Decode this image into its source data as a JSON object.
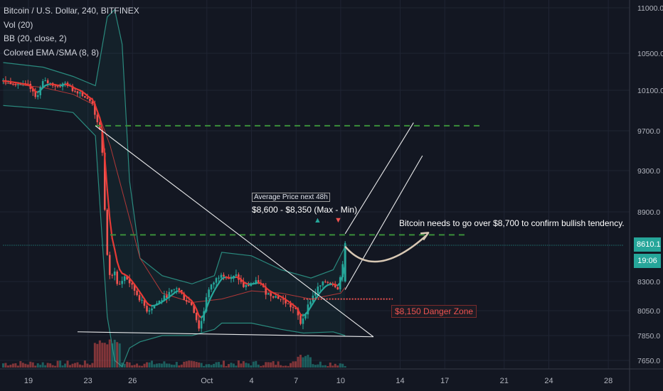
{
  "legend": {
    "symbol": "Bitcoin / U.S. Dollar, 240, BITFINEX",
    "vol": "Vol (20)",
    "bb": "BB (20, close, 2)",
    "ema": "Colored EMA /SMA (8, 8)"
  },
  "colors": {
    "background": "#131722",
    "up": "#26a69a",
    "down": "#ef5350",
    "ema_up": "#26a69a",
    "ema_down": "#e53935",
    "bb_band": "#2a8a7e",
    "bb_basis": "#b03838",
    "resistance": "#3a8f3a",
    "danger": "#ef5350",
    "trendline": "#ffffff",
    "last_price": "#26a69a"
  },
  "annotations": {
    "box_label": "Average Price next 48h",
    "range_label": "$8,600 - $8,350 (Max - Min)",
    "bullish_note": "Bitcoin needs to go over $8,700 to confirm bullish tendency.",
    "danger_label": "$8,150 Danger Zone",
    "up_marker": "▲",
    "down_marker": "▼"
  },
  "price_tags": {
    "last_price": "8610.1",
    "countdown": "19:06"
  },
  "chart_data": {
    "type": "candlestick",
    "title": "Bitcoin / U.S. Dollar, 240, BITFINEX",
    "y_axis": {
      "ticks": [
        "11000.0",
        "10500.0",
        "10100.0",
        "9700.0",
        "9300.0",
        "8900.0",
        "8300.0",
        "8050.0",
        "7850.0",
        "7650.0"
      ],
      "tick_values": [
        11000,
        10500,
        10100,
        9700,
        9300,
        8900,
        8300,
        8050,
        7850,
        7650
      ],
      "range": [
        7600,
        11100
      ]
    },
    "x_axis": {
      "ticks": [
        "19",
        "23",
        "26",
        "Oct",
        "4",
        "7",
        "10",
        "14",
        "17",
        "21",
        "24",
        "28"
      ],
      "tick_positions_days": [
        0,
        4,
        7,
        12,
        15,
        18,
        21,
        25,
        28,
        32,
        35,
        39
      ]
    },
    "close_path": [
      [
        -1.7,
        10200
      ],
      [
        0,
        10150
      ],
      [
        0.5,
        10020
      ],
      [
        1,
        10200
      ],
      [
        1.5,
        10170
      ],
      [
        2,
        10140
      ],
      [
        2.5,
        10180
      ],
      [
        3,
        10100
      ],
      [
        3.5,
        10080
      ],
      [
        4,
        10000
      ],
      [
        4.3,
        9980
      ],
      [
        4.6,
        9780
      ],
      [
        4.8,
        9700
      ],
      [
        5,
        9450
      ],
      [
        5.2,
        8650
      ],
      [
        5.5,
        8300
      ],
      [
        5.8,
        8400
      ],
      [
        6,
        8250
      ],
      [
        6.5,
        8350
      ],
      [
        7,
        8250
      ],
      [
        7.5,
        8150
      ],
      [
        8,
        8050
      ],
      [
        8.5,
        8100
      ],
      [
        9,
        8150
      ],
      [
        9.5,
        8200
      ],
      [
        10,
        8250
      ],
      [
        10.5,
        8150
      ],
      [
        11,
        8100
      ],
      [
        11.3,
        7980
      ],
      [
        11.5,
        7900
      ],
      [
        11.8,
        8050
      ],
      [
        12,
        8200
      ],
      [
        12.5,
        8300
      ],
      [
        13,
        8380
      ],
      [
        13.5,
        8320
      ],
      [
        14,
        8350
      ],
      [
        14.5,
        8250
      ],
      [
        15,
        8280
      ],
      [
        15.5,
        8300
      ],
      [
        16,
        8200
      ],
      [
        16.5,
        8180
      ],
      [
        17,
        8150
      ],
      [
        17.5,
        8100
      ],
      [
        18,
        8050
      ],
      [
        18.3,
        7950
      ],
      [
        18.6,
        8030
      ],
      [
        19,
        8150
      ],
      [
        19.5,
        8250
      ],
      [
        20,
        8300
      ],
      [
        20.5,
        8280
      ],
      [
        20.8,
        8250
      ],
      [
        21,
        8350
      ],
      [
        21.3,
        8610
      ]
    ],
    "bb_upper": [
      [
        -1.7,
        10400
      ],
      [
        1,
        10350
      ],
      [
        3,
        10250
      ],
      [
        4.5,
        10150
      ],
      [
        5.3,
        10900
      ],
      [
        5.8,
        10980
      ],
      [
        6.3,
        10600
      ],
      [
        6.8,
        9200
      ],
      [
        7.5,
        8500
      ],
      [
        9,
        8350
      ],
      [
        11,
        8280
      ],
      [
        12.5,
        8350
      ],
      [
        13,
        8550
      ],
      [
        15,
        8520
      ],
      [
        17,
        8400
      ],
      [
        19,
        8330
      ],
      [
        20.5,
        8400
      ],
      [
        21.3,
        8600
      ]
    ],
    "bb_lower": [
      [
        -1.7,
        9950
      ],
      [
        1,
        9920
      ],
      [
        3,
        9880
      ],
      [
        4.5,
        9650
      ],
      [
        5.3,
        8000
      ],
      [
        5.8,
        7650
      ],
      [
        6.3,
        7600
      ],
      [
        6.8,
        7750
      ],
      [
        7.5,
        7800
      ],
      [
        9,
        7850
      ],
      [
        11,
        7850
      ],
      [
        12.5,
        7900
      ],
      [
        13,
        7950
      ],
      [
        15,
        7950
      ],
      [
        17,
        7900
      ],
      [
        18.5,
        7870
      ],
      [
        20.5,
        7880
      ],
      [
        21.3,
        7850
      ]
    ],
    "bb_basis": [
      [
        -1.7,
        10180
      ],
      [
        1,
        10130
      ],
      [
        3,
        10060
      ],
      [
        4.5,
        9950
      ],
      [
        5.5,
        9550
      ],
      [
        6.5,
        9000
      ],
      [
        7.5,
        8500
      ],
      [
        9,
        8200
      ],
      [
        11,
        8120
      ],
      [
        13,
        8150
      ],
      [
        15,
        8220
      ],
      [
        17,
        8200
      ],
      [
        19,
        8150
      ],
      [
        21,
        8200
      ],
      [
        21.3,
        8250
      ]
    ],
    "levels": [
      {
        "name": "resistance_9750",
        "value": 9750,
        "x_range": [
          4.5,
          30.5
        ]
      },
      {
        "name": "resistance_8700",
        "value": 8700,
        "x_range": [
          5.5,
          29.5
        ]
      },
      {
        "name": "danger_8150",
        "value": 8150,
        "x_range": [
          18.5,
          24.5
        ]
      },
      {
        "name": "last_price",
        "value": 8610,
        "x_range": [
          -1.7,
          40
        ]
      }
    ],
    "trendlines": [
      {
        "name": "descending",
        "from": [
          4.5,
          9750
        ],
        "to": [
          23.2,
          7840
        ]
      },
      {
        "name": "support",
        "from": [
          3.3,
          7880
        ],
        "to": [
          23.2,
          7840
        ]
      },
      {
        "name": "channel_upper",
        "from": [
          21.3,
          8710
        ],
        "to": [
          25.9,
          9780
        ]
      },
      {
        "name": "channel_lower",
        "from": [
          21.3,
          8230
        ],
        "to": [
          26.5,
          9450
        ]
      }
    ],
    "projection": {
      "from": [
        21.3,
        8600
      ],
      "via": [
        23.3,
        8450
      ],
      "to": [
        26.8,
        8700
      ]
    }
  }
}
